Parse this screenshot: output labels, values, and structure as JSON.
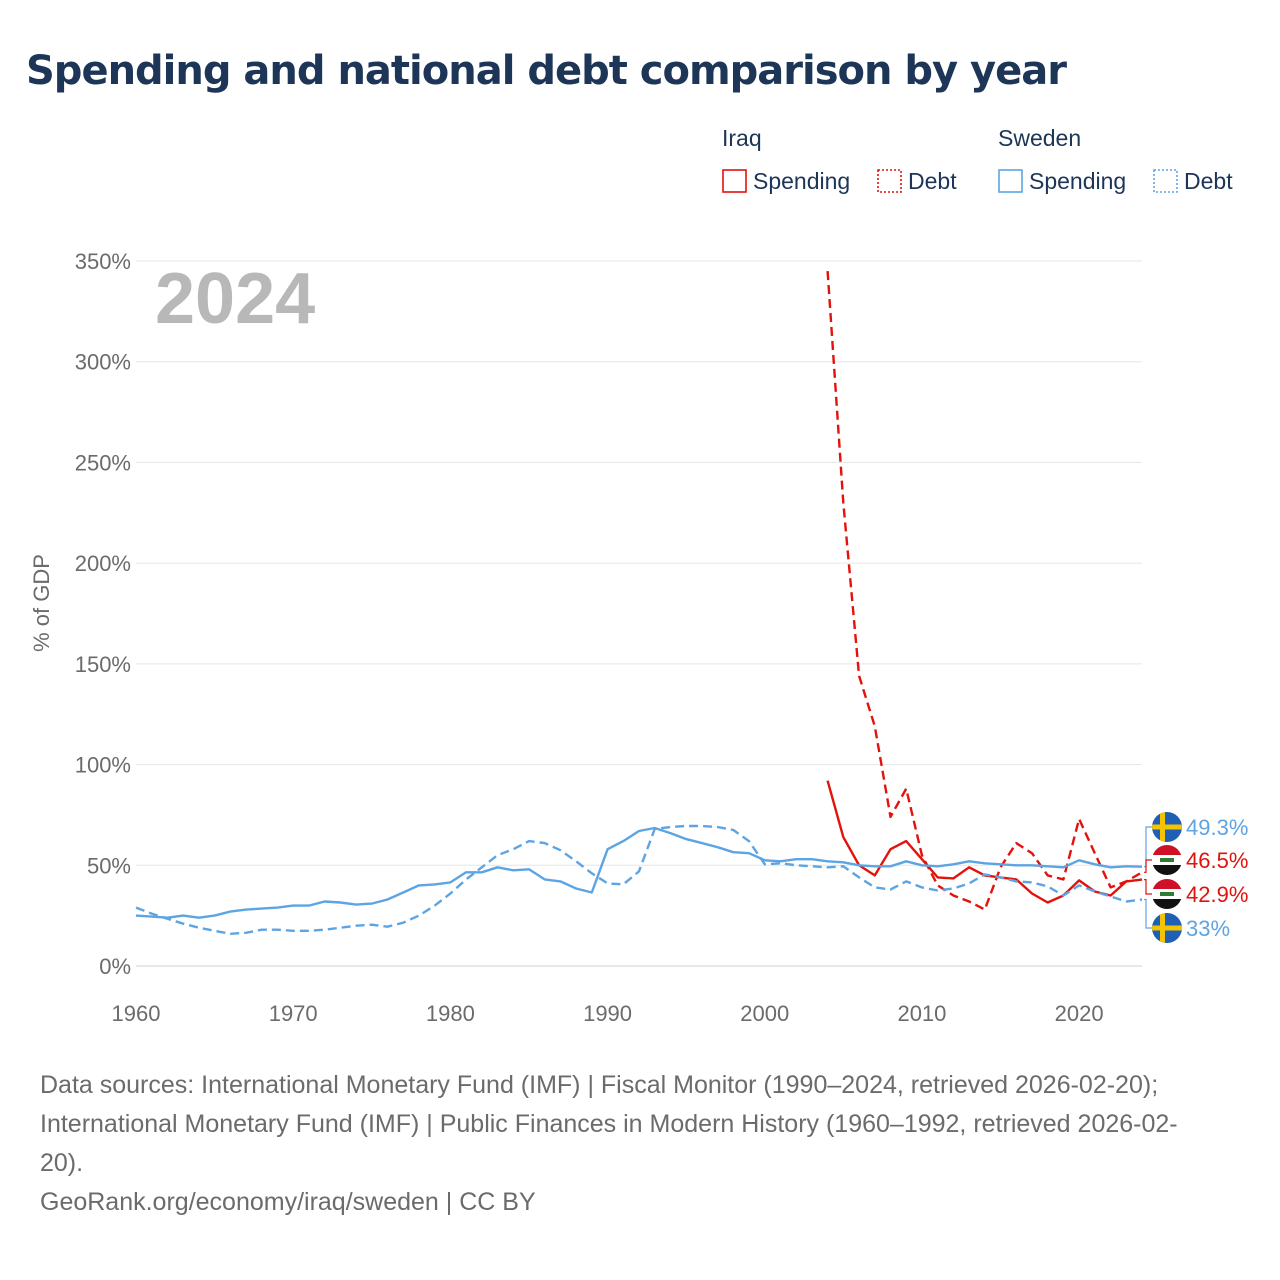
{
  "title": "Spending and national debt comparison by year",
  "year_watermark": "2024",
  "colors": {
    "iraq": "#e3120b",
    "sweden": "#5da4e3",
    "title": "#1d3557",
    "grid": "#e6e6e6",
    "axis_text": "#6b6b6b",
    "watermark": "#b8b8b8"
  },
  "chart_data": {
    "type": "line",
    "ylabel": "% of GDP",
    "xlabel": "",
    "xlim": [
      1960,
      2024
    ],
    "ylim": [
      0,
      350
    ],
    "x_ticks": [
      1960,
      1970,
      1980,
      1990,
      2000,
      2010,
      2020
    ],
    "y_ticks": [
      {
        "value": 0,
        "label": "0%"
      },
      {
        "value": 50,
        "label": "50%"
      },
      {
        "value": 100,
        "label": "100%"
      },
      {
        "value": 150,
        "label": "150%"
      },
      {
        "value": 200,
        "label": "200%"
      },
      {
        "value": 250,
        "label": "250%"
      },
      {
        "value": 300,
        "label": "300%"
      },
      {
        "value": 350,
        "label": "350%"
      }
    ],
    "legend": {
      "groups": [
        {
          "name": "Iraq",
          "items": [
            {
              "label": "Spending",
              "style": "solid"
            },
            {
              "label": "Debt",
              "style": "dotted"
            }
          ]
        },
        {
          "name": "Sweden",
          "items": [
            {
              "label": "Spending",
              "style": "solid"
            },
            {
              "label": "Debt",
              "style": "dotted"
            }
          ]
        }
      ]
    },
    "series": [
      {
        "name": "Iraq Spending",
        "country": "iraq",
        "dash": "solid",
        "x": [
          2004,
          2005,
          2006,
          2007,
          2008,
          2009,
          2010,
          2011,
          2012,
          2013,
          2014,
          2015,
          2016,
          2017,
          2018,
          2019,
          2020,
          2021,
          2022,
          2023,
          2024
        ],
        "y": [
          92,
          64,
          50,
          45,
          58,
          62,
          53,
          44,
          43.5,
          49,
          45,
          44,
          43,
          36,
          31.5,
          35,
          42.5,
          37,
          35,
          42,
          42.9
        ]
      },
      {
        "name": "Iraq Debt",
        "country": "iraq",
        "dash": "dashed",
        "x": [
          2004,
          2005,
          2006,
          2007,
          2008,
          2009,
          2010,
          2011,
          2012,
          2013,
          2014,
          2015,
          2016,
          2017,
          2018,
          2019,
          2020,
          2021,
          2022,
          2023,
          2024
        ],
        "y": [
          345,
          230,
          144,
          119,
          74,
          88,
          55,
          40,
          35,
          32,
          28,
          49,
          61,
          56,
          45,
          43,
          73,
          56,
          39,
          42,
          46.5
        ]
      },
      {
        "name": "Sweden Spending",
        "country": "sweden",
        "dash": "solid",
        "x": [
          1960,
          1961,
          1962,
          1963,
          1964,
          1965,
          1966,
          1967,
          1968,
          1969,
          1970,
          1971,
          1972,
          1973,
          1974,
          1975,
          1976,
          1977,
          1978,
          1979,
          1980,
          1981,
          1982,
          1983,
          1984,
          1985,
          1986,
          1987,
          1988,
          1989,
          1990,
          1991,
          1992,
          1993,
          1994,
          1995,
          1996,
          1997,
          1998,
          1999,
          2000,
          2001,
          2002,
          2003,
          2004,
          2005,
          2006,
          2007,
          2008,
          2009,
          2010,
          2011,
          2012,
          2013,
          2014,
          2015,
          2016,
          2017,
          2018,
          2019,
          2020,
          2021,
          2022,
          2023,
          2024
        ],
        "y": [
          25,
          24.5,
          24,
          25,
          24,
          25,
          27,
          28,
          28.5,
          29,
          30,
          30,
          32,
          31.5,
          30.5,
          31,
          33,
          36.5,
          40,
          40.5,
          41.5,
          46.5,
          46.5,
          49,
          47.5,
          48,
          43,
          42,
          38.5,
          36.5,
          58,
          62,
          67,
          68.5,
          66,
          63,
          61,
          59,
          56.5,
          56,
          52.5,
          52,
          53,
          53,
          52,
          51.5,
          50,
          49.5,
          49.5,
          52,
          50,
          49.5,
          50.5,
          52,
          51,
          50.5,
          50,
          50,
          49.5,
          49,
          52.5,
          50.5,
          49,
          49.5,
          49.3
        ]
      },
      {
        "name": "Sweden Debt",
        "country": "sweden",
        "dash": "dashed",
        "x": [
          1960,
          1961,
          1962,
          1963,
          1964,
          1965,
          1966,
          1967,
          1968,
          1969,
          1970,
          1971,
          1972,
          1973,
          1974,
          1975,
          1976,
          1977,
          1978,
          1979,
          1980,
          1981,
          1982,
          1983,
          1984,
          1985,
          1986,
          1987,
          1988,
          1989,
          1990,
          1991,
          1992,
          1993,
          1994,
          1995,
          1996,
          1997,
          1998,
          1999,
          2000,
          2001,
          2002,
          2003,
          2004,
          2005,
          2006,
          2007,
          2008,
          2009,
          2010,
          2011,
          2012,
          2013,
          2014,
          2015,
          2016,
          2017,
          2018,
          2019,
          2020,
          2021,
          2022,
          2023,
          2024
        ],
        "y": [
          29,
          26,
          23.5,
          21,
          19,
          17.5,
          16,
          16.5,
          18,
          18,
          17.5,
          17.5,
          18,
          19,
          20,
          20.5,
          19.5,
          21.5,
          25,
          30,
          36,
          43,
          49,
          55,
          58,
          62,
          61,
          57.5,
          52,
          46,
          41,
          40.5,
          47,
          68,
          69,
          69.5,
          69.5,
          69,
          67.5,
          62,
          50.5,
          51,
          50,
          49.5,
          49,
          49.5,
          44,
          39,
          38,
          42,
          39,
          37.5,
          38.5,
          41,
          45.5,
          44,
          42,
          41.5,
          39.5,
          35,
          40,
          37,
          34.5,
          32,
          33
        ]
      }
    ],
    "end_labels": [
      {
        "country": "sweden",
        "label": "49.3%",
        "value": 49.3
      },
      {
        "country": "iraq",
        "label": "46.5%",
        "value": 46.5
      },
      {
        "country": "iraq",
        "label": "42.9%",
        "value": 42.9
      },
      {
        "country": "sweden",
        "label": "33%",
        "value": 33
      }
    ]
  },
  "footer": {
    "sources": [
      "Data sources: International Monetary Fund (IMF) | Fiscal Monitor (1990–2024, retrieved 2026-02-20);",
      "International Monetary Fund (IMF) | Public Finances in Modern History (1960–1992, retrieved 2026-02-",
      "20)."
    ],
    "credit": "GeoRank.org/economy/iraq/sweden | CC BY"
  }
}
